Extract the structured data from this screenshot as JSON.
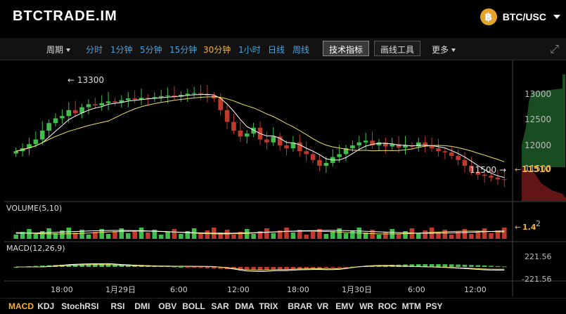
{
  "header": {
    "logo_text": "BTCTRADE.IM",
    "coin_symbol": "฿",
    "pair_label": "BTC/USC"
  },
  "toolbar": {
    "period_label": "周期",
    "intervals": [
      "分时",
      "1分钟",
      "5分钟",
      "15分钟",
      "30分钟",
      "1小时",
      "日线",
      "周线"
    ],
    "active_interval": "30分钟",
    "indicator_button": "技术指标",
    "drawing_button": "画线工具",
    "more_label": "更多"
  },
  "colors": {
    "up": "#3fbf4a",
    "down": "#c0392b",
    "ma_fast": "#ffffff",
    "ma_slow": "#f0e060",
    "accent": "#f2b233",
    "interval": "#4aa3df",
    "depth_bid": "#2e8b3a",
    "depth_ask": "#8b1e1e"
  },
  "price_axis": {
    "ticks": [
      "13000",
      "12500",
      "12000",
      "11500"
    ],
    "current_price": "11510",
    "max_annotation": "← 13300",
    "min_annotation": "11500 →"
  },
  "volume_panel": {
    "label": "VOLUME(5,10)",
    "tick": "2",
    "current_value": "1.4"
  },
  "macd_panel": {
    "label": "MACD(12,26,9)",
    "tick_top": "221.56",
    "tick_bottom": "-221.56"
  },
  "time_axis": {
    "labels": [
      "18:00",
      "1月29日",
      "6:00",
      "12:00",
      "18:00",
      "1月30日",
      "6:00",
      "12:00"
    ]
  },
  "indicator_tabs": [
    "MACD",
    "KDJ",
    "StochRSI",
    "RSI",
    "DMI",
    "OBV",
    "BOLL",
    "SAR",
    "DMA",
    "TRIX",
    "BRAR",
    "VR",
    "EMV",
    "WR",
    "ROC",
    "MTM",
    "PSY"
  ],
  "active_indicator": "MACD",
  "chart_data": {
    "type": "candlestick",
    "price_range": [
      11200,
      13500
    ],
    "close_series": [
      12000,
      12050,
      12120,
      12200,
      12350,
      12480,
      12560,
      12600,
      12700,
      12650,
      12750,
      12800,
      12780,
      12820,
      12850,
      12830,
      12870,
      12900,
      12880,
      12910,
      12900,
      12920,
      12940,
      12950,
      12930,
      12960,
      12980,
      12990,
      12970,
      12950,
      12900,
      12700,
      12500,
      12350,
      12250,
      12300,
      12400,
      12200,
      12150,
      12250,
      12100,
      12050,
      12150,
      12000,
      11950,
      11850,
      11750,
      11800,
      11900,
      11950,
      12050,
      12100,
      12150,
      12180,
      12100,
      12150,
      12080,
      12120,
      12060,
      12100,
      12080,
      12150,
      12100,
      12050,
      12000,
      11980,
      11920,
      11850,
      11750,
      11650,
      11600,
      11580,
      11550,
      11520,
      11510
    ],
    "max_label": 13300,
    "min_label": 11500,
    "last_price": 11510
  }
}
